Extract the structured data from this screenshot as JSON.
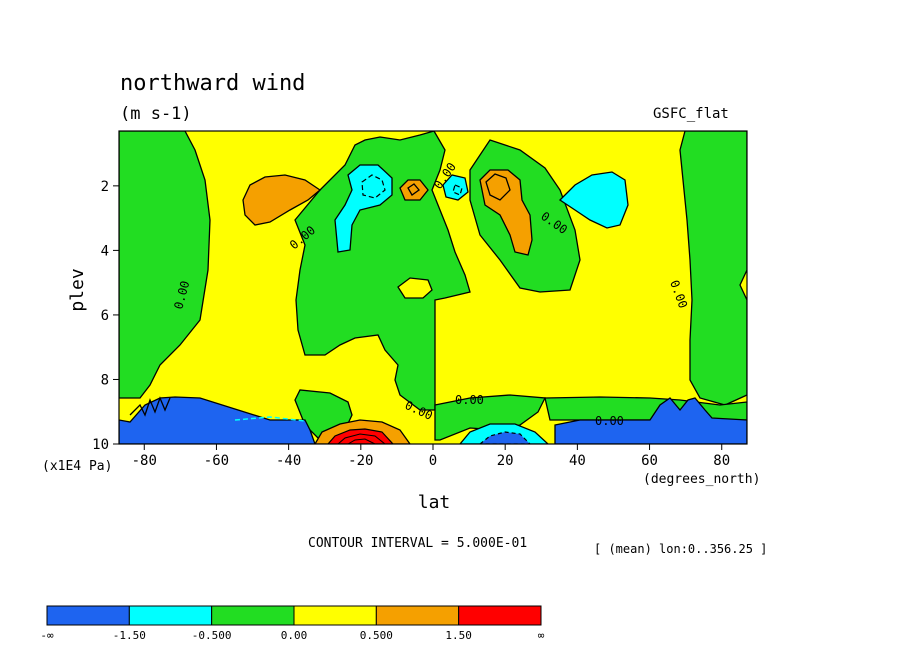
{
  "chart_data": {
    "type": "contour",
    "title": "northward wind",
    "units": "(m s-1)",
    "dataset": "GSFC_flat",
    "xlabel": "lat",
    "x_units": "(degrees_north)",
    "ylabel": "plev",
    "y_units": "(x1E4 Pa)",
    "xlim": [
      -87,
      87
    ],
    "ylim": [
      10,
      0.3
    ],
    "x_ticks": [
      -80,
      -60,
      -40,
      -20,
      0,
      20,
      40,
      60,
      80
    ],
    "x_tick_labels": [
      "-80",
      "-60",
      "-40",
      "-20",
      "0",
      "20",
      "40",
      "60",
      "80"
    ],
    "y_ticks": [
      2,
      4,
      6,
      8,
      10
    ],
    "y_tick_labels": [
      "2",
      "4",
      "6",
      "8",
      "10"
    ],
    "contour_interval_text": "CONTOUR INTERVAL = 5.000E-01",
    "footer_text": "[ (mean) lon:0..356.25 ]",
    "contour_label": "0.00",
    "colorbar": {
      "levels": [
        "-∞",
        "-1.50",
        "-0.500",
        "0.00",
        "0.500",
        "1.50",
        "∞"
      ],
      "colors": [
        "#1e64f0",
        "#00ffff",
        "#22dd22",
        "#ffff00",
        "#f5a000",
        "#ff0000"
      ]
    },
    "regions": [
      {
        "class": "[0,0.5)",
        "color": "#ffff00",
        "desc": "background positive field"
      },
      {
        "class": "[-0.5,0)",
        "color": "#22dd22",
        "desc": "negative bands"
      },
      {
        "class": "[0.5,1.5)",
        "color": "#f5a000",
        "desc": "upper positive cores"
      },
      {
        "class": "[-1.5,-0.5)",
        "color": "#00ffff",
        "desc": "upper negative cores"
      },
      {
        "class": "(-inf,-1.5)",
        "color": "#1e64f0",
        "desc": "near-surface strong negative"
      },
      {
        "class": "[1.5,inf)",
        "color": "#ff0000",
        "desc": "near-surface strong positive core near -20"
      }
    ]
  }
}
